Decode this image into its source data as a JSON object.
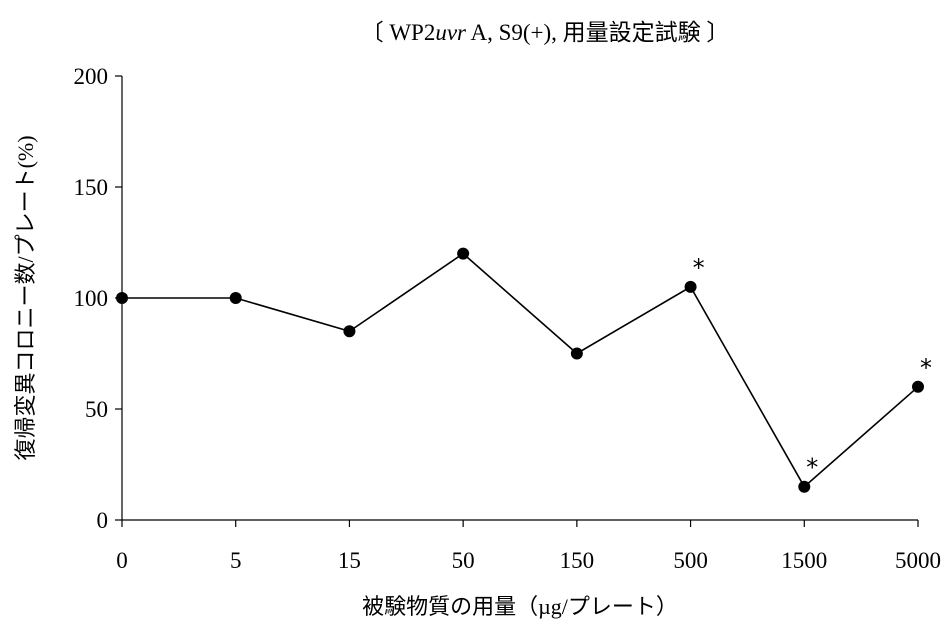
{
  "chart_data": {
    "type": "line",
    "title": {
      "prefix": "〔 WP2",
      "italic": "uvr",
      "suffix": " A, S9(+), 用量設定試験 〕"
    },
    "xlabel": "被験物質の用量（µg/プレート）",
    "ylabel": "復帰変異コロニー数/プレート(%)",
    "categories": [
      "0",
      "5",
      "15",
      "50",
      "150",
      "500",
      "1500",
      "5000"
    ],
    "series": [
      {
        "values": [
          100,
          100,
          85,
          120,
          75,
          105,
          15,
          60
        ],
        "color": "#000000"
      }
    ],
    "ylim": [
      0,
      200
    ],
    "yticks": [
      0,
      50,
      100,
      150,
      200
    ],
    "significance_marks": [
      {
        "category": "500",
        "label": "*"
      },
      {
        "category": "1500",
        "label": "*"
      },
      {
        "category": "5000",
        "label": "*"
      }
    ],
    "grid": false,
    "legend": "none"
  }
}
